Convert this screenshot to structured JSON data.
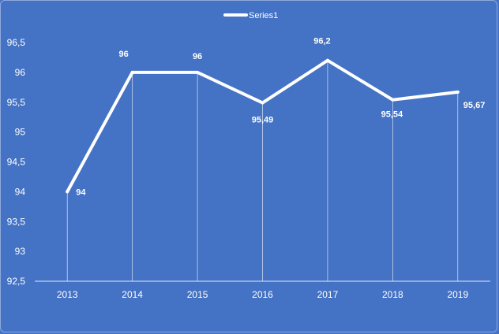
{
  "chart_data": {
    "type": "line",
    "x": [
      "2013",
      "2014",
      "2015",
      "2016",
      "2017",
      "2018",
      "2019"
    ],
    "series": [
      {
        "name": "Series1",
        "values": [
          94,
          96,
          96,
          95.49,
          96.2,
          95.54,
          95.67
        ]
      }
    ],
    "data_labels": [
      "94",
      "96",
      "96",
      "95,49",
      "96,2",
      "95,54",
      "95,67"
    ],
    "y_ticks": [
      "92,5",
      "93",
      "93,5",
      "94",
      "94,5",
      "95",
      "95,5",
      "96",
      "96,5"
    ],
    "y_tick_values": [
      92.5,
      93,
      93.5,
      94,
      94.5,
      95,
      95.5,
      96,
      96.5
    ],
    "ylim": [
      92.5,
      96.5
    ],
    "title": "",
    "xlabel": "",
    "ylabel": "",
    "legend_position": "top-center",
    "drop_lines": true,
    "grid": false,
    "colors": {
      "background": "#4472c4",
      "line": "#ffffff",
      "text": "#ffffff"
    }
  }
}
